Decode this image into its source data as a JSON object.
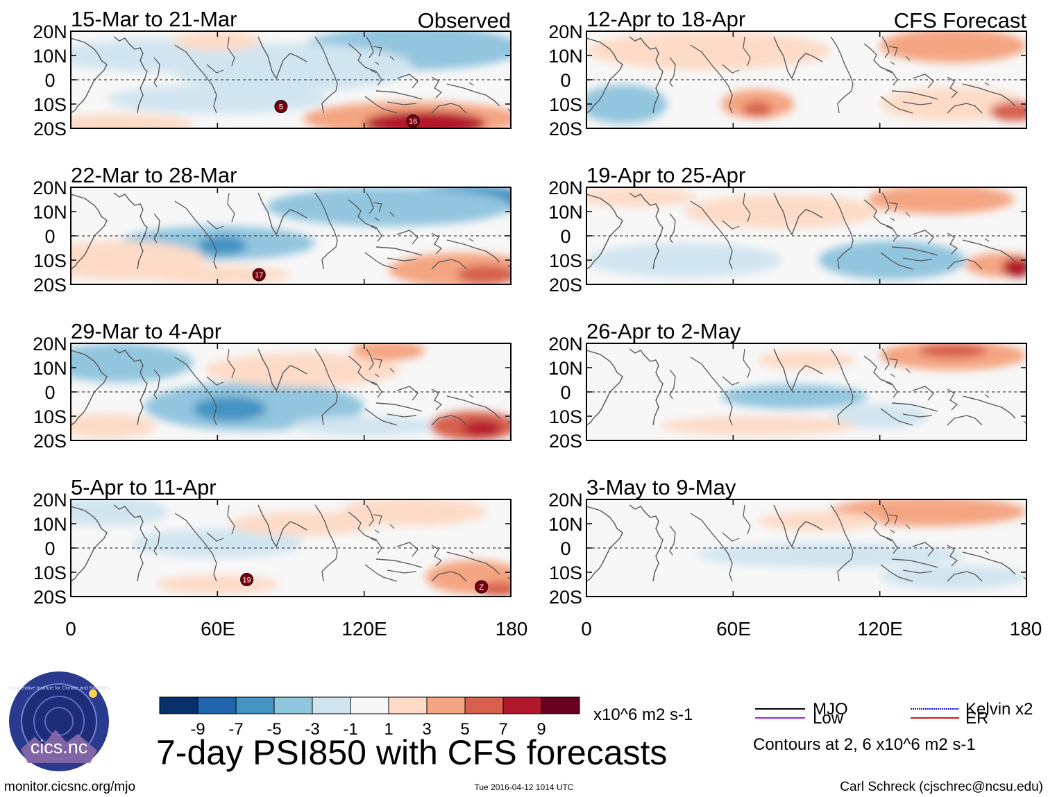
{
  "colors": {
    "scale": [
      "#08306b",
      "#2166ac",
      "#4393c3",
      "#92c5de",
      "#d1e5f0",
      "#f7f7f7",
      "#fddbc7",
      "#f4a582",
      "#d6604d",
      "#b2182b",
      "#67001f"
    ],
    "mjo": "#000000",
    "low": "#a020f0",
    "kelvin": "#1010e0",
    "er": "#e01010",
    "land": "#555555"
  },
  "chart_data": {
    "type": "heatmap",
    "title": "7-day PSI850 with CFS forecasts",
    "variable": "PSI850 anomaly",
    "units": "x10^6 m2 s-1",
    "xlim": [
      0,
      180
    ],
    "ylim": [
      -20,
      20
    ],
    "xticks": [
      0,
      60,
      120,
      180
    ],
    "xtick_labels": [
      "0",
      "60E",
      "120E",
      "180"
    ],
    "yticks": [
      20,
      10,
      0,
      -10,
      -20
    ],
    "ytick_labels": [
      "20N",
      "10N",
      "0",
      "10S",
      "20S"
    ],
    "colorbar": {
      "labels": [
        "-9",
        "-7",
        "-5",
        "-3",
        "-1",
        "1",
        "3",
        "5",
        "7",
        "9"
      ],
      "bounds": [
        -9,
        -7,
        -5,
        -3,
        -1,
        1,
        3,
        5,
        7,
        9
      ]
    },
    "contours_note": "Contours at 2, 6 x10^6 m2 s-1",
    "legend": [
      {
        "label": "MJO",
        "color": "#000000"
      },
      {
        "label": "Kelvin x2",
        "color": "#1010e0"
      },
      {
        "label": "Low",
        "color": "#a020f0"
      },
      {
        "label": "ER",
        "color": "#e01010"
      }
    ],
    "panels": [
      {
        "title": "15-Mar to 21-Mar",
        "corner": "Observed",
        "cyclones": [
          {
            "lon": 86,
            "lat": -11,
            "label": "5"
          },
          {
            "lon": 140,
            "lat": -17,
            "label": "16"
          }
        ],
        "blobs": [
          {
            "lon": 145,
            "lat": 17,
            "rx": 28,
            "ry": 5,
            "v": -7
          },
          {
            "lon": 140,
            "lat": 13,
            "rx": 45,
            "ry": 9,
            "v": -4
          },
          {
            "lon": 35,
            "lat": 10,
            "rx": 40,
            "ry": 7,
            "v": -2
          },
          {
            "lon": 90,
            "lat": 5,
            "rx": 50,
            "ry": 10,
            "v": -2
          },
          {
            "lon": 60,
            "lat": -8,
            "rx": 45,
            "ry": 6,
            "v": -2
          },
          {
            "lon": 20,
            "lat": -18,
            "rx": 30,
            "ry": 4,
            "v": 3
          },
          {
            "lon": 60,
            "lat": 16,
            "rx": 18,
            "ry": 4,
            "v": 2
          },
          {
            "lon": 140,
            "lat": -16,
            "rx": 45,
            "ry": 7,
            "v": 5
          },
          {
            "lon": 145,
            "lat": -18,
            "rx": 25,
            "ry": 5,
            "v": 8
          }
        ]
      },
      {
        "title": "22-Mar to 28-Mar",
        "corner": "",
        "cyclones": [
          {
            "lon": 77,
            "lat": -16,
            "label": "17"
          }
        ],
        "blobs": [
          {
            "lon": 160,
            "lat": 15,
            "rx": 30,
            "ry": 6,
            "v": -6
          },
          {
            "lon": 130,
            "lat": 12,
            "rx": 50,
            "ry": 8,
            "v": -3
          },
          {
            "lon": 60,
            "lat": -3,
            "rx": 40,
            "ry": 7,
            "v": -3
          },
          {
            "lon": 62,
            "lat": -4,
            "rx": 10,
            "ry": 4,
            "v": -5
          },
          {
            "lon": 20,
            "lat": -10,
            "rx": 35,
            "ry": 8,
            "v": 3
          },
          {
            "lon": 60,
            "lat": -16,
            "rx": 30,
            "ry": 4,
            "v": 3
          },
          {
            "lon": 160,
            "lat": -14,
            "rx": 30,
            "ry": 7,
            "v": 4
          },
          {
            "lon": 170,
            "lat": -16,
            "rx": 12,
            "ry": 4,
            "v": 7
          }
        ]
      },
      {
        "title": "29-Mar to 4-Apr",
        "corner": "",
        "cyclones": [],
        "blobs": [
          {
            "lon": 20,
            "lat": 12,
            "rx": 30,
            "ry": 8,
            "v": -3
          },
          {
            "lon": 75,
            "lat": -6,
            "rx": 45,
            "ry": 10,
            "v": -3
          },
          {
            "lon": 65,
            "lat": -7,
            "rx": 15,
            "ry": 5,
            "v": -6
          },
          {
            "lon": 120,
            "lat": -14,
            "rx": 30,
            "ry": 4,
            "v": -2
          },
          {
            "lon": 95,
            "lat": 9,
            "rx": 40,
            "ry": 7,
            "v": 2
          },
          {
            "lon": 130,
            "lat": 17,
            "rx": 15,
            "ry": 4,
            "v": 4
          },
          {
            "lon": 15,
            "lat": -14,
            "rx": 20,
            "ry": 5,
            "v": 3
          },
          {
            "lon": 165,
            "lat": -14,
            "rx": 18,
            "ry": 6,
            "v": 6
          },
          {
            "lon": 168,
            "lat": -15,
            "rx": 8,
            "ry": 3,
            "v": 8
          }
        ]
      },
      {
        "title": "5-Apr to 11-Apr",
        "corner": "",
        "cyclones": [
          {
            "lon": 72,
            "lat": -13,
            "label": "19"
          },
          {
            "lon": 168,
            "lat": -16,
            "label": "Z"
          }
        ],
        "blobs": [
          {
            "lon": 15,
            "lat": 15,
            "rx": 25,
            "ry": 6,
            "v": -2
          },
          {
            "lon": 60,
            "lat": 2,
            "rx": 35,
            "ry": 6,
            "v": -2
          },
          {
            "lon": 140,
            "lat": 15,
            "rx": 30,
            "ry": 6,
            "v": 3
          },
          {
            "lon": 95,
            "lat": 10,
            "rx": 30,
            "ry": 5,
            "v": 2
          },
          {
            "lon": 60,
            "lat": -15,
            "rx": 25,
            "ry": 4,
            "v": 3
          },
          {
            "lon": 165,
            "lat": -12,
            "rx": 20,
            "ry": 7,
            "v": 4
          },
          {
            "lon": 175,
            "lat": -17,
            "rx": 8,
            "ry": 3,
            "v": 7
          }
        ]
      },
      {
        "title": "12-Apr to 18-Apr",
        "corner": "CFS Forecast",
        "cyclones": [],
        "blobs": [
          {
            "lon": 150,
            "lat": 14,
            "rx": 30,
            "ry": 7,
            "v": 5
          },
          {
            "lon": 50,
            "lat": 12,
            "rx": 50,
            "ry": 8,
            "v": 2
          },
          {
            "lon": 70,
            "lat": -10,
            "rx": 15,
            "ry": 6,
            "v": 4
          },
          {
            "lon": 70,
            "lat": -12,
            "rx": 6,
            "ry": 3,
            "v": 6
          },
          {
            "lon": 15,
            "lat": -10,
            "rx": 18,
            "ry": 8,
            "v": -3
          },
          {
            "lon": 150,
            "lat": -10,
            "rx": 30,
            "ry": 7,
            "v": 2
          },
          {
            "lon": 175,
            "lat": -13,
            "rx": 10,
            "ry": 4,
            "v": 7
          }
        ]
      },
      {
        "title": "19-Apr to 25-Apr",
        "corner": "",
        "cyclones": [],
        "blobs": [
          {
            "lon": 145,
            "lat": 15,
            "rx": 30,
            "ry": 6,
            "v": 5
          },
          {
            "lon": 20,
            "lat": 16,
            "rx": 25,
            "ry": 4,
            "v": 3
          },
          {
            "lon": 80,
            "lat": 10,
            "rx": 40,
            "ry": 7,
            "v": 2
          },
          {
            "lon": 125,
            "lat": -10,
            "rx": 30,
            "ry": 8,
            "v": -3
          },
          {
            "lon": 40,
            "lat": -10,
            "rx": 40,
            "ry": 7,
            "v": -2
          },
          {
            "lon": 170,
            "lat": -12,
            "rx": 15,
            "ry": 5,
            "v": 5
          },
          {
            "lon": 176,
            "lat": -13,
            "rx": 6,
            "ry": 4,
            "v": 8
          }
        ]
      },
      {
        "title": "26-Apr to 2-May",
        "corner": "",
        "cyclones": [],
        "blobs": [
          {
            "lon": 150,
            "lat": 15,
            "rx": 30,
            "ry": 6,
            "v": 4
          },
          {
            "lon": 150,
            "lat": 17,
            "rx": 14,
            "ry": 3,
            "v": 6
          },
          {
            "lon": 85,
            "lat": -2,
            "rx": 30,
            "ry": 5,
            "v": -3
          },
          {
            "lon": 120,
            "lat": -10,
            "rx": 20,
            "ry": 5,
            "v": -2
          },
          {
            "lon": 70,
            "lat": -14,
            "rx": 40,
            "ry": 4,
            "v": 2
          },
          {
            "lon": 90,
            "lat": 13,
            "rx": 20,
            "ry": 4,
            "v": 2
          }
        ]
      },
      {
        "title": "3-May to 9-May",
        "corner": "",
        "cyclones": [],
        "blobs": [
          {
            "lon": 140,
            "lat": 15,
            "rx": 40,
            "ry": 6,
            "v": 4
          },
          {
            "lon": 100,
            "lat": -3,
            "rx": 55,
            "ry": 5,
            "v": -2
          },
          {
            "lon": 150,
            "lat": -12,
            "rx": 30,
            "ry": 5,
            "v": -1.5
          },
          {
            "lon": 95,
            "lat": 11,
            "rx": 25,
            "ry": 4,
            "v": 2
          }
        ]
      }
    ]
  },
  "colorbar_units": "x10^6 m2 s-1",
  "legend_note": "Contours at 2, 6 x10^6 m2 s-1",
  "logo_text": "cics.nc",
  "logo_ring_text": "Cooperative Institute for Climate and Satellites",
  "footer": {
    "left": "monitor.cicsnc.org/mjo",
    "center": "Tue 2016-04-12 1014 UTC",
    "right": "Carl Schreck (cjschrec@ncsu.edu)"
  }
}
